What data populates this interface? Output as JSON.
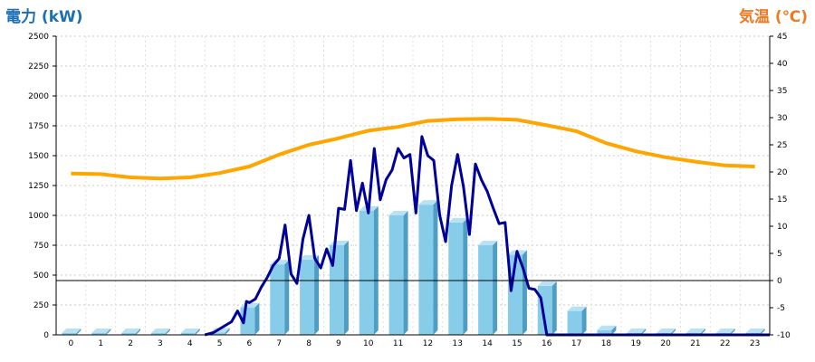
{
  "chart_data": {
    "type": "bar",
    "left_axis_label": "電力 (kW)",
    "right_axis_label": "気温 (℃)",
    "colors": {
      "left_axis_label": "#1a6fb5",
      "right_axis_label": "#f07820",
      "bar": "#87cdea",
      "bar_side": "#4e9ec4",
      "bar_top": "#b8e2f4",
      "power_line": "#000099",
      "temperature_line": "#ffa500"
    },
    "x_categories": [
      "0",
      "1",
      "2",
      "3",
      "4",
      "5",
      "6",
      "7",
      "8",
      "9",
      "10",
      "11",
      "12",
      "13",
      "14",
      "15",
      "16",
      "17",
      "18",
      "19",
      "20",
      "21",
      "22",
      "23"
    ],
    "y_left_ticks": [
      "0",
      "250",
      "500",
      "750",
      "1000",
      "1250",
      "1500",
      "1750",
      "2000",
      "2250",
      "2500"
    ],
    "y_left_range": [
      0,
      2500
    ],
    "y_right_ticks": [
      "-10",
      "-5",
      "0",
      "5",
      "10",
      "15",
      "20",
      "25",
      "30",
      "35",
      "40",
      "45"
    ],
    "y_right_range": [
      -10,
      45
    ],
    "series": [
      {
        "type": "bar",
        "axis": "left",
        "values": [
          0,
          0,
          0,
          0,
          0,
          20,
          230,
          590,
          630,
          750,
          1040,
          1000,
          1090,
          940,
          750,
          670,
          410,
          200,
          40,
          0,
          0,
          0,
          0,
          0
        ]
      },
      {
        "type": "line",
        "axis": "left",
        "x": [
          4.5,
          4.8,
          5.0,
          5.2,
          5.4,
          5.6,
          5.8,
          5.9,
          6.0,
          6.2,
          6.4,
          6.6,
          6.8,
          7.0,
          7.2,
          7.4,
          7.6,
          7.8,
          8.0,
          8.2,
          8.4,
          8.6,
          8.8,
          9.0,
          9.2,
          9.4,
          9.6,
          9.8,
          10.0,
          10.2,
          10.4,
          10.6,
          10.8,
          11.0,
          11.2,
          11.4,
          11.6,
          11.8,
          12.0,
          12.2,
          12.4,
          12.6,
          12.8,
          13.0,
          13.2,
          13.4,
          13.6,
          13.8,
          14.0,
          14.2,
          14.4,
          14.6,
          14.8,
          15.0,
          15.2,
          15.4,
          15.6,
          15.8,
          16.0,
          16.2,
          16.4,
          16.6,
          16.8,
          17.0,
          17.2,
          17.4,
          17.6,
          18.0,
          18.5,
          19.0,
          23.5
        ],
        "values": [
          0,
          20,
          50,
          80,
          110,
          200,
          100,
          280,
          270,
          300,
          400,
          480,
          580,
          640,
          920,
          510,
          430,
          800,
          1000,
          640,
          560,
          720,
          580,
          1060,
          1050,
          1460,
          1040,
          1270,
          1020,
          1560,
          1130,
          1300,
          1380,
          1560,
          1480,
          1510,
          1020,
          1660,
          1500,
          1460,
          1000,
          780,
          1250,
          1510,
          1240,
          840,
          1430,
          1300,
          1200,
          1060,
          930,
          940,
          370,
          700,
          560,
          390,
          380,
          310,
          0,
          0,
          0,
          0,
          0,
          0,
          0,
          0,
          0,
          0,
          0,
          0,
          0
        ],
        "line_values_note_removed": ""
      },
      {
        "type": "line",
        "axis": "right",
        "x": [
          0,
          1,
          2,
          3,
          4,
          5,
          6,
          7,
          8,
          9,
          10,
          11,
          12,
          13,
          14,
          15,
          16,
          17,
          18,
          19,
          20,
          21,
          22,
          23
        ],
        "values": [
          19.7,
          19.6,
          19.0,
          18.8,
          19.0,
          19.8,
          21.0,
          23.2,
          25.0,
          26.2,
          27.6,
          28.3,
          29.4,
          29.7,
          29.8,
          29.6,
          28.6,
          27.5,
          25.3,
          23.8,
          22.7,
          21.9,
          21.2,
          21.0
        ]
      }
    ]
  }
}
